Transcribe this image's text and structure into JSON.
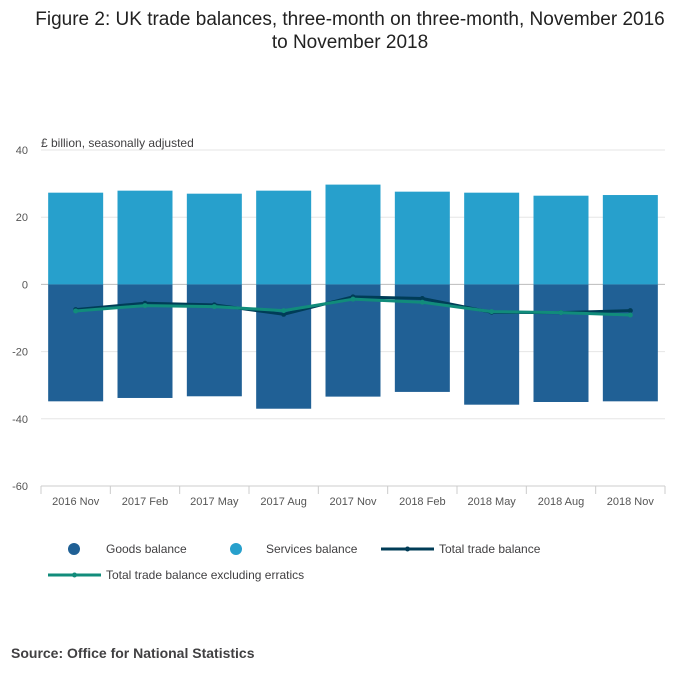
{
  "title_line1": "Figure 2: UK trade balances, three-month on three-month, November 2016",
  "title_line2": "to November 2018",
  "source": "Source: Office for National Statistics",
  "chart_data": {
    "type": "bar",
    "ylabel": "£ billion, seasonally adjusted",
    "ylim": [
      -60,
      40
    ],
    "yticks": [
      40,
      20,
      0,
      -20,
      -40,
      -60
    ],
    "grid": true,
    "legend_position": "bottom",
    "categories": [
      "2016 Nov",
      "2017 Feb",
      "2017 May",
      "2017 Aug",
      "2017 Nov",
      "2018 Feb",
      "2018 May",
      "2018 Aug",
      "2018 Nov"
    ],
    "series": [
      {
        "name": "Goods balance",
        "kind": "bar",
        "color": "#206095",
        "values": [
          -34.8,
          -33.8,
          -33.3,
          -37.0,
          -33.4,
          -32.0,
          -35.8,
          -35.0,
          -34.8
        ]
      },
      {
        "name": "Services balance",
        "kind": "bar",
        "color": "#27a0cc",
        "values": [
          27.3,
          27.9,
          27.0,
          27.9,
          29.7,
          27.6,
          27.3,
          26.4,
          26.6
        ]
      },
      {
        "name": "Total trade balance",
        "kind": "line",
        "color": "#003c57",
        "values": [
          -7.5,
          -5.6,
          -6.1,
          -8.9,
          -3.7,
          -4.2,
          -8.3,
          -8.4,
          -7.8
        ]
      },
      {
        "name": "Total trade balance excluding erratics",
        "kind": "line",
        "color": "#118c7b",
        "values": [
          -7.9,
          -6.3,
          -6.6,
          -7.8,
          -4.4,
          -5.3,
          -8.1,
          -8.4,
          -9.1
        ]
      }
    ]
  }
}
